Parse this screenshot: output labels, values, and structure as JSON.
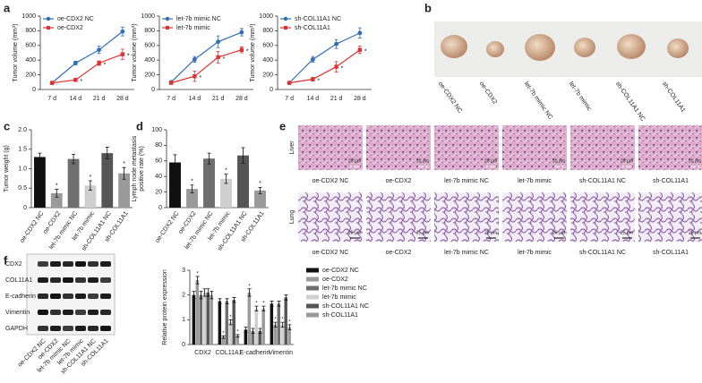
{
  "panel_labels": [
    "a",
    "b",
    "c",
    "d",
    "e",
    "f"
  ],
  "tumor_photo": {
    "labels": [
      "oe-CDX2 NC",
      "oe-CDX2",
      "let-7b mimic NC",
      "let-7b mimic",
      "sh-COL11A1 NC",
      "sh-COL11A1"
    ]
  },
  "histology": {
    "rows": [
      {
        "label": "Liver",
        "scale_bar": "25 μm"
      },
      {
        "label": "Lung",
        "scale_bar": "25 μm"
      }
    ],
    "labels": [
      "oe-CDX2 NC",
      "oe-CDX2",
      "let-7b mimic NC",
      "let-7b mimic",
      "sh-COL11A1 NC",
      "sh-COL11A1"
    ]
  },
  "western_blot": {
    "proteins": [
      "CDX2",
      "COL11A1",
      "E-cadherin",
      "Vimentin",
      "GAPDH"
    ],
    "groups": [
      "oe-CDX2 NC",
      "oe-CDX2",
      "let-7b mimic NC",
      "let-7b mimic",
      "sh-COL11A1 NC",
      "sh-COL11A1"
    ]
  },
  "chart_data": [
    {
      "type": "line",
      "ylabel": "Tumor volume (mm³)",
      "categories": [
        "7 d",
        "14 d",
        "21 d",
        "28 d"
      ],
      "series": [
        {
          "name": "oe-CDX2 NC",
          "color": "#2f6db5",
          "marker": "circle",
          "values": [
            90,
            360,
            540,
            790
          ],
          "errors": [
            15,
            25,
            50,
            60
          ]
        },
        {
          "name": "oe-CDX2",
          "color": "#e03030",
          "marker": "square",
          "values": [
            90,
            130,
            360,
            480
          ],
          "errors": [
            10,
            20,
            30,
            70
          ],
          "significance": [
            null,
            "*",
            "*",
            "*"
          ]
        }
      ],
      "ylim": [
        0,
        1000
      ],
      "yticks": [
        0,
        200,
        400,
        600,
        800,
        1000
      ]
    },
    {
      "type": "line",
      "ylabel": "Tumor volume (mm³)",
      "categories": [
        "7 d",
        "14 d",
        "21 d",
        "28 d"
      ],
      "series": [
        {
          "name": "let-7b mimic NC",
          "color": "#2f6db5",
          "marker": "circle",
          "values": [
            100,
            410,
            650,
            780
          ],
          "errors": [
            15,
            40,
            80,
            50
          ]
        },
        {
          "name": "let-7b mimic",
          "color": "#e03030",
          "marker": "square",
          "values": [
            90,
            180,
            440,
            540
          ],
          "errors": [
            10,
            70,
            80,
            40
          ],
          "significance": [
            null,
            "*",
            "*",
            "*"
          ]
        }
      ],
      "ylim": [
        0,
        1000
      ],
      "yticks": [
        0,
        200,
        400,
        600,
        800,
        1000
      ]
    },
    {
      "type": "line",
      "ylabel": "Tumor volume (mm³)",
      "categories": [
        "7 d",
        "14 d",
        "21 d",
        "28 d"
      ],
      "series": [
        {
          "name": "sh-COL11A1 NC",
          "color": "#2f6db5",
          "marker": "circle",
          "values": [
            90,
            410,
            620,
            770
          ],
          "errors": [
            10,
            40,
            60,
            70
          ]
        },
        {
          "name": "sh-COL11A1",
          "color": "#e03030",
          "marker": "square",
          "values": [
            90,
            140,
            310,
            540
          ],
          "errors": [
            10,
            25,
            70,
            50
          ],
          "significance": [
            null,
            "*",
            "*",
            "*"
          ]
        }
      ],
      "ylim": [
        0,
        1000
      ],
      "yticks": [
        0,
        200,
        400,
        600,
        800,
        1000
      ]
    },
    {
      "type": "bar",
      "ylabel": "Tumor weight (g)",
      "categories": [
        "oe-CDX2 NC",
        "oe-CDX2",
        "let-7b mimic NC",
        "let-7b mimic",
        "sh-COL11A1 NC",
        "sh-COL11A1"
      ],
      "values": [
        1.3,
        0.37,
        1.25,
        0.57,
        1.4,
        0.88
      ],
      "errors": [
        0.1,
        0.1,
        0.12,
        0.12,
        0.15,
        0.15
      ],
      "significance": [
        null,
        "*",
        null,
        "*",
        null,
        "*"
      ],
      "colors": [
        "#111111",
        "#9a9a9a",
        "#6e6e6e",
        "#cfcfcf",
        "#555555",
        "#9a9a9a"
      ],
      "ylim": [
        0,
        2
      ],
      "yticks": [
        0,
        0.5,
        {
          "value": 1,
          "label": "1.0"
        },
        1.5,
        {
          "value": 2,
          "label": "2.0"
        }
      ]
    },
    {
      "type": "bar",
      "ylabel": [
        "Lymph node metastasis",
        "positive rate (%)"
      ],
      "categories": [
        "oe-CDX2 NC",
        "oe-CDX2",
        "let-7b mimic NC",
        "let-7b mimic",
        "sh-COL11A1 NC",
        "sh-COL11A1"
      ],
      "values": [
        58,
        24,
        63,
        37,
        67,
        22
      ],
      "errors": [
        10,
        5,
        7,
        6,
        10,
        4
      ],
      "significance": [
        null,
        "*",
        null,
        "*",
        null,
        "*"
      ],
      "colors": [
        "#111111",
        "#9a9a9a",
        "#6e6e6e",
        "#cfcfcf",
        "#555555",
        "#9a9a9a"
      ],
      "ylim": [
        0,
        100
      ],
      "yticks": [
        0,
        20,
        40,
        60,
        80,
        100
      ]
    },
    {
      "type": "grouped_bar",
      "ylabel": "Relative protein expression",
      "categories": [
        "CDX2",
        "COL11A1",
        "E-cadherin",
        "Vimentin"
      ],
      "series": [
        {
          "name": "oe-CDX2 NC",
          "color": "#111111",
          "values": [
            2.0,
            1.75,
            0.6,
            1.65
          ],
          "errors": [
            0.15,
            0.1,
            0.1,
            0.1
          ]
        },
        {
          "name": "oe-CDX2",
          "color": "#9a9a9a",
          "values": [
            2.6,
            0.3,
            2.1,
            0.8
          ],
          "errors": [
            0.15,
            0.05,
            0.15,
            0.1
          ],
          "significance": [
            "*",
            "*",
            "*",
            "*"
          ]
        },
        {
          "name": "let-7b mimic NC",
          "color": "#6e6e6e",
          "values": [
            2.0,
            1.75,
            0.55,
            1.65
          ],
          "errors": [
            0.15,
            0.1,
            0.1,
            0.1
          ]
        },
        {
          "name": "let-7b mimic",
          "color": "#cfcfcf",
          "values": [
            2.1,
            0.9,
            1.45,
            0.8
          ],
          "errors": [
            0.15,
            0.1,
            0.1,
            0.1
          ],
          "significance": [
            null,
            "*",
            "*",
            "*"
          ]
        },
        {
          "name": "sh-COL11A1 NC",
          "color": "#555555",
          "values": [
            2.1,
            1.8,
            0.55,
            1.9
          ],
          "errors": [
            0.15,
            0.1,
            0.1,
            0.1
          ]
        },
        {
          "name": "sh-COL11A1",
          "color": "#9a9a9a",
          "values": [
            2.0,
            0.35,
            1.45,
            0.7
          ],
          "errors": [
            0.15,
            0.05,
            0.1,
            0.1
          ],
          "significance": [
            null,
            "*",
            "*",
            "*"
          ]
        }
      ],
      "ylim": [
        0,
        3
      ],
      "yticks": [
        0,
        1,
        2,
        3
      ],
      "legend": "right"
    }
  ]
}
